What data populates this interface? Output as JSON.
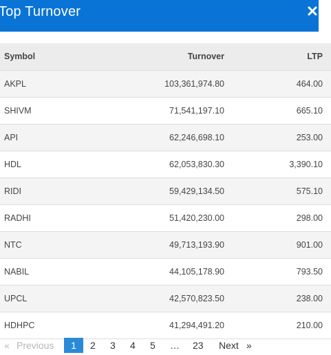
{
  "header": {
    "title": "Top Turnover"
  },
  "table": {
    "columns": {
      "symbol": "Symbol",
      "turnover": "Turnover",
      "ltp": "LTP"
    },
    "rows": [
      {
        "symbol": "AKPL",
        "turnover": "103,361,974.80",
        "ltp": "464.00"
      },
      {
        "symbol": "SHIVM",
        "turnover": "71,541,197.10",
        "ltp": "665.10"
      },
      {
        "symbol": "API",
        "turnover": "62,246,698.10",
        "ltp": "253.00"
      },
      {
        "symbol": "HDL",
        "turnover": "62,053,830.30",
        "ltp": "3,390.10"
      },
      {
        "symbol": "RIDI",
        "turnover": "59,429,134.50",
        "ltp": "575.10"
      },
      {
        "symbol": "RADHI",
        "turnover": "51,420,230.00",
        "ltp": "298.00"
      },
      {
        "symbol": "NTC",
        "turnover": "49,713,193.90",
        "ltp": "901.00"
      },
      {
        "symbol": "NABIL",
        "turnover": "44,105,178.90",
        "ltp": "793.50"
      },
      {
        "symbol": "UPCL",
        "turnover": "42,570,823.50",
        "ltp": "238.00"
      },
      {
        "symbol": "HDHPC",
        "turnover": "41,294,491.20",
        "ltp": "210.00"
      }
    ]
  },
  "pagination": {
    "first_glyph": "«",
    "previous_label": "Previous",
    "pages": [
      "1",
      "2",
      "3",
      "4",
      "5"
    ],
    "active_page": "1",
    "ellipsis": "…",
    "last_page": "23",
    "next_label": "Next",
    "last_glyph": "»"
  },
  "colors": {
    "header_bg": "#0a74d6",
    "active_page_bg": "#2a8ad8",
    "disabled_text": "#b6b6b6"
  },
  "icons": {
    "close": "close-icon"
  }
}
